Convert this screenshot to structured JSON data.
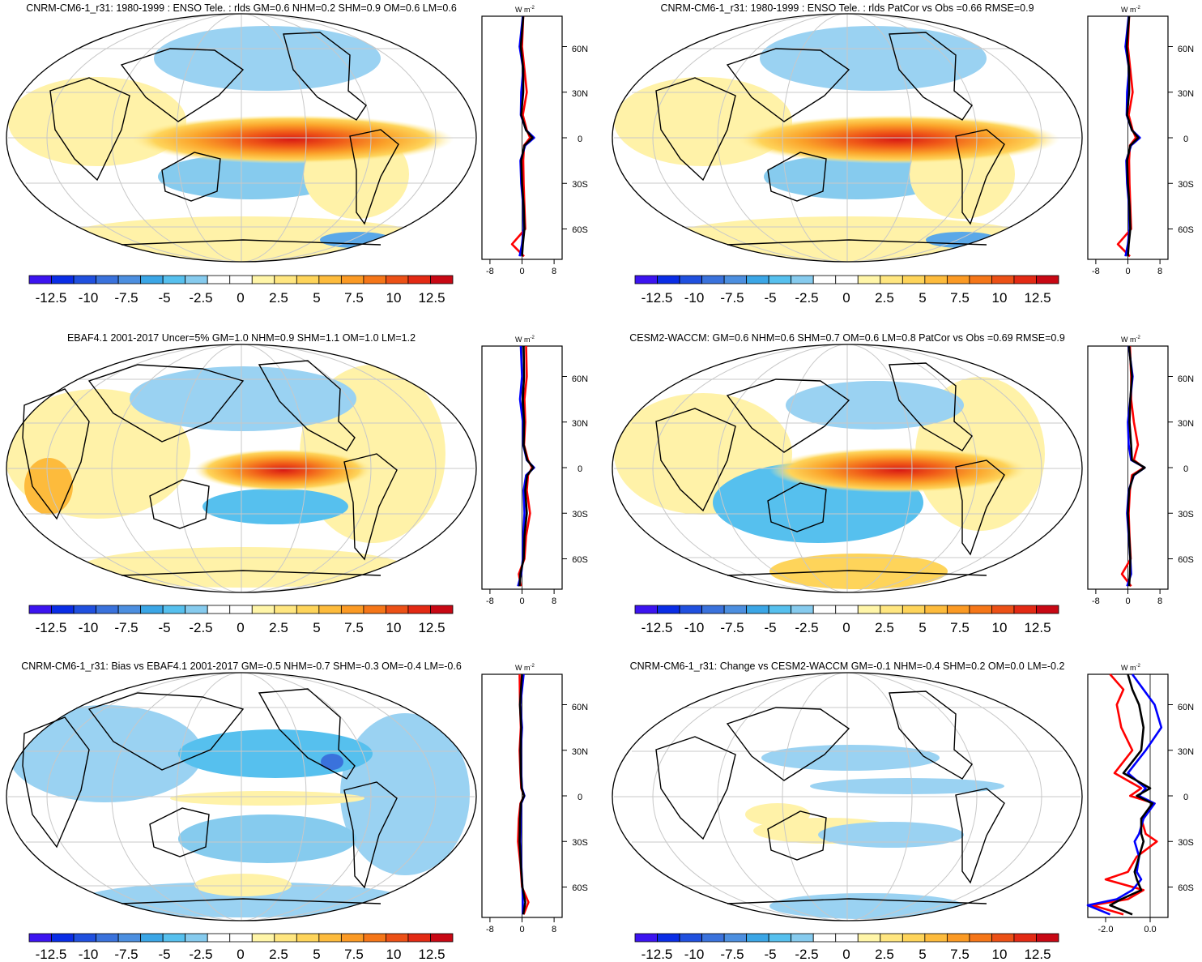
{
  "colorbar": {
    "labels": [
      "-12.5",
      "-10",
      "-7.5",
      "-5",
      "-2.5",
      "0",
      "2.5",
      "5",
      "7.5",
      "10",
      "12.5"
    ],
    "colors": [
      "#3c14f0",
      "#0a2de6",
      "#2050df",
      "#3a72dc",
      "#4c8fe0",
      "#3ba6e6",
      "#56c0ee",
      "#86cbee",
      "#ffffff",
      "#ffffff",
      "#fff5a8",
      "#ffe680",
      "#fed45a",
      "#fdbb3c",
      "#fb9a24",
      "#f57618",
      "#ec5016",
      "#e32a14",
      "#c80814"
    ]
  },
  "panels": [
    {
      "title": "CNRM-CM6-1_r31: 1980-1999 : ENSO Tele. : rlds GM=0.6 NHM=0.2 SHM=0.9 OM=0.6 LM=0.6",
      "profile": {
        "unit": "W m",
        "unit_exp": "-2",
        "xticks": [
          "-8",
          "0",
          "8"
        ],
        "xrange": [
          -10,
          10
        ],
        "yticks": [
          "60N",
          "30N",
          "0",
          "30S",
          "60S"
        ]
      }
    },
    {
      "title": "CNRM-CM6-1_r31: 1980-1999 : ENSO Tele. : rlds PatCor vs Obs =0.66 RMSE=0.9",
      "profile": {
        "unit": "W m",
        "unit_exp": "-2",
        "xticks": [
          "-8",
          "0",
          "8"
        ],
        "xrange": [
          -10,
          10
        ],
        "yticks": [
          "60N",
          "30N",
          "0",
          "30S",
          "60S"
        ]
      }
    },
    {
      "title": "EBAF4.1 2001-2017 Uncer=5% GM=1.0 NHM=0.9 SHM=1.1 OM=1.0 LM=1.2",
      "profile": {
        "unit": "W m",
        "unit_exp": "-2",
        "xticks": [
          "-8",
          "0",
          "8"
        ],
        "xrange": [
          -10,
          10
        ],
        "yticks": [
          "60N",
          "30N",
          "0",
          "30S",
          "60S"
        ]
      }
    },
    {
      "title": "CESM2-WACCM: GM=0.6 NHM=0.6 SHM=0.7 OM=0.6 LM=0.8 PatCor vs Obs =0.69 RMSE=0.9",
      "profile": {
        "unit": "W m",
        "unit_exp": "-2",
        "xticks": [
          "-8",
          "0",
          "8"
        ],
        "xrange": [
          -10,
          10
        ],
        "yticks": [
          "60N",
          "30N",
          "0",
          "30S",
          "60S"
        ]
      }
    },
    {
      "title": "CNRM-CM6-1_r31: Bias vs EBAF4.1 2001-2017 GM=-0.5 NHM=-0.7 SHM=-0.3 OM=-0.4 LM=-0.6",
      "profile": {
        "unit": "W m",
        "unit_exp": "-2",
        "xticks": [
          "-8",
          "0",
          "8"
        ],
        "xrange": [
          -10,
          10
        ],
        "yticks": [
          "60N",
          "30N",
          "0",
          "30S",
          "60S"
        ]
      }
    },
    {
      "title": "CNRM-CM6-1_r31: Change vs CESM2-WACCM GM=-0.1 NHM=-0.4 SHM=0.2 OM=0.0 LM=-0.2",
      "profile": {
        "unit": "W m",
        "unit_exp": "-2",
        "xticks": [
          "-2.0",
          "0.0"
        ],
        "xrange": [
          -2.8,
          0.8
        ],
        "yticks": [
          "60N",
          "30N",
          "0",
          "30S",
          "60S"
        ]
      }
    }
  ],
  "chart_data": [
    {
      "type": "heatmap",
      "title": "CNRM-CM6-1_r31: 1980-1999 : ENSO Tele. : rlds GM=0.6 NHM=0.2 SHM=0.9 OM=0.6 LM=0.6",
      "units": "W m-2",
      "colorbar_ticks": [
        -12.5,
        -10,
        -7.5,
        -5,
        -2.5,
        0,
        2.5,
        5,
        7.5,
        10,
        12.5
      ],
      "zonal_profile": {
        "lat": [
          80,
          60,
          45,
          30,
          15,
          5,
          0,
          -5,
          -15,
          -30,
          -45,
          -60,
          -70,
          -78
        ],
        "series": [
          {
            "color": "#ff0000",
            "values": [
              0.3,
              0.0,
              0.6,
              1.2,
              0.2,
              1.2,
              2.0,
              0.5,
              0.3,
              0.4,
              0.6,
              0.8,
              -2.5,
              0.5
            ]
          },
          {
            "color": "#0000ff",
            "values": [
              0.2,
              -0.6,
              0.3,
              -0.2,
              -0.3,
              1.0,
              3.0,
              0.8,
              -0.4,
              -0.2,
              0.3,
              0.4,
              0.0,
              -0.6
            ]
          },
          {
            "color": "#000000",
            "values": [
              0.3,
              -0.3,
              0.3,
              0.3,
              -0.2,
              1.0,
              2.6,
              0.6,
              -0.2,
              0.0,
              0.4,
              0.6,
              0.2,
              0.0
            ]
          }
        ]
      }
    },
    {
      "type": "heatmap",
      "title": "CNRM-CM6-1_r31: 1980-1999 : ENSO Tele. : rlds PatCor vs Obs =0.66 RMSE=0.9",
      "units": "W m-2",
      "colorbar_ticks": [
        -12.5,
        -10,
        -7.5,
        -5,
        -2.5,
        0,
        2.5,
        5,
        7.5,
        10,
        12.5
      ],
      "zonal_profile": {
        "lat": [
          80,
          60,
          45,
          30,
          15,
          5,
          0,
          -5,
          -15,
          -30,
          -45,
          -60,
          -70,
          -78
        ],
        "series": [
          {
            "color": "#ff0000",
            "values": [
              0.3,
              0.0,
              0.6,
              1.2,
              0.2,
              1.2,
              2.0,
              0.5,
              0.3,
              0.4,
              0.6,
              0.8,
              -2.5,
              0.5
            ]
          },
          {
            "color": "#0000ff",
            "values": [
              0.2,
              -0.6,
              0.3,
              -0.2,
              -0.3,
              1.0,
              3.0,
              0.8,
              -0.4,
              -0.2,
              0.3,
              0.4,
              0.0,
              -0.6
            ]
          },
          {
            "color": "#000000",
            "values": [
              0.3,
              -0.3,
              0.3,
              0.3,
              -0.2,
              1.0,
              2.6,
              0.6,
              -0.2,
              0.0,
              0.4,
              0.6,
              0.2,
              0.0
            ]
          }
        ]
      }
    },
    {
      "type": "heatmap",
      "title": "EBAF4.1 2001-2017 Uncer=5% GM=1.0 NHM=0.9 SHM=1.1 OM=1.0 LM=1.2",
      "units": "W m-2",
      "colorbar_ticks": [
        -12.5,
        -10,
        -7.5,
        -5,
        -2.5,
        0,
        2.5,
        5,
        7.5,
        10,
        12.5
      ],
      "zonal_profile": {
        "lat": [
          80,
          60,
          45,
          30,
          15,
          5,
          0,
          -5,
          -15,
          -30,
          -45,
          -60,
          -70,
          -78
        ],
        "series": [
          {
            "color": "#ff0000",
            "values": [
              1.0,
              1.2,
              0.6,
              0.8,
              0.5,
              1.5,
              2.5,
              1.5,
              1.2,
              2.0,
              1.0,
              0.6,
              -0.8,
              -0.3
            ]
          },
          {
            "color": "#0000ff",
            "values": [
              -0.3,
              0.0,
              -0.5,
              0.2,
              0.3,
              1.2,
              3.0,
              1.0,
              0.4,
              0.6,
              0.3,
              0.2,
              -0.2,
              -1.0
            ]
          },
          {
            "color": "#000000",
            "values": [
              0.4,
              0.5,
              0.2,
              0.5,
              0.4,
              1.3,
              2.8,
              1.3,
              0.8,
              1.2,
              0.6,
              0.4,
              -0.4,
              -0.6
            ]
          }
        ]
      }
    },
    {
      "type": "heatmap",
      "title": "CESM2-WACCM: GM=0.6 NHM=0.6 SHM=0.7 OM=0.6 LM=0.8 PatCor vs Obs =0.69 RMSE=0.9",
      "units": "W m-2",
      "colorbar_ticks": [
        -12.5,
        -10,
        -7.5,
        -5,
        -2.5,
        0,
        2.5,
        5,
        7.5,
        10,
        12.5
      ],
      "zonal_profile": {
        "lat": [
          80,
          60,
          45,
          30,
          15,
          5,
          0,
          -5,
          -15,
          -30,
          -45,
          -60,
          -70,
          -78
        ],
        "series": [
          {
            "color": "#ff0000",
            "values": [
              0.5,
              0.8,
              0.8,
              1.5,
              2.5,
              1.5,
              4.0,
              1.0,
              0.5,
              0.2,
              0.4,
              0.7,
              -1.5,
              0.8
            ]
          },
          {
            "color": "#0000ff",
            "values": [
              0.2,
              1.2,
              0.6,
              0.0,
              0.2,
              0.8,
              4.2,
              1.5,
              0.2,
              -0.2,
              0.2,
              0.6,
              0.8,
              -0.2
            ]
          },
          {
            "color": "#000000",
            "values": [
              0.3,
              1.0,
              0.6,
              0.4,
              0.8,
              1.0,
              4.2,
              1.4,
              0.3,
              0.0,
              0.3,
              0.6,
              0.5,
              0.3
            ]
          }
        ]
      }
    },
    {
      "type": "heatmap",
      "title": "CNRM-CM6-1_r31: Bias vs EBAF4.1 2001-2017 GM=-0.5 NHM=-0.7 SHM=-0.3 OM=-0.4 LM=-0.6",
      "units": "W m-2",
      "colorbar_ticks": [
        -12.5,
        -10,
        -7.5,
        -5,
        -2.5,
        0,
        2.5,
        5,
        7.5,
        10,
        12.5
      ],
      "zonal_profile": {
        "lat": [
          80,
          60,
          45,
          30,
          15,
          5,
          0,
          -5,
          -15,
          -30,
          -45,
          -60,
          -70,
          -78
        ],
        "series": [
          {
            "color": "#ff0000",
            "values": [
              -0.6,
              -0.5,
              -0.3,
              -0.6,
              -0.4,
              -0.2,
              0.5,
              -0.4,
              -0.8,
              -1.0,
              -0.4,
              0.0,
              1.6,
              0.4
            ]
          },
          {
            "color": "#0000ff",
            "values": [
              0.4,
              -0.4,
              0.0,
              -0.3,
              -0.2,
              0.0,
              0.6,
              -0.2,
              -0.3,
              -0.4,
              -0.2,
              0.1,
              0.2,
              0.2
            ]
          },
          {
            "color": "#000000",
            "values": [
              0.0,
              -0.5,
              -0.2,
              -0.4,
              -0.3,
              -0.1,
              0.5,
              -0.3,
              -0.5,
              -0.6,
              -0.3,
              0.1,
              0.8,
              0.3
            ]
          }
        ]
      }
    },
    {
      "type": "heatmap",
      "title": "CNRM-CM6-1_r31: Change vs CESM2-WACCM GM=-0.1 NHM=-0.4 SHM=0.2 OM=0.0 LM=-0.2",
      "units": "W m-2",
      "colorbar_ticks": [
        -12.5,
        -10,
        -7.5,
        -5,
        -2.5,
        0,
        2.5,
        5,
        7.5,
        10,
        12.5
      ],
      "zonal_profile": {
        "lat": [
          80,
          70,
          60,
          45,
          30,
          15,
          5,
          0,
          -5,
          -15,
          -25,
          -30,
          -40,
          -50,
          -55,
          -62,
          -68,
          -72,
          -78
        ],
        "series": [
          {
            "color": "#ff0000",
            "values": [
              -1.8,
              -1.2,
              -1.5,
              -1.3,
              -0.8,
              -1.6,
              -0.4,
              -0.9,
              0.2,
              -0.4,
              -0.2,
              0.3,
              -0.6,
              -1.0,
              -2.0,
              -0.3,
              -1.0,
              -2.6,
              -1.2
            ]
          },
          {
            "color": "#0000ff",
            "values": [
              -0.8,
              -0.3,
              0.2,
              0.5,
              -0.2,
              -1.0,
              -0.2,
              -0.5,
              0.2,
              -0.3,
              -0.5,
              -0.7,
              -0.5,
              -0.6,
              -0.4,
              -0.8,
              -1.5,
              -2.8,
              -1.8
            ]
          },
          {
            "color": "#000000",
            "values": [
              -1.0,
              -0.8,
              -0.5,
              -0.3,
              -0.4,
              -1.2,
              0.0,
              -0.6,
              0.1,
              -0.4,
              -0.4,
              -0.3,
              -0.5,
              -0.7,
              -0.6,
              -0.4,
              -1.3,
              -1.8,
              -0.8
            ]
          }
        ]
      }
    }
  ]
}
